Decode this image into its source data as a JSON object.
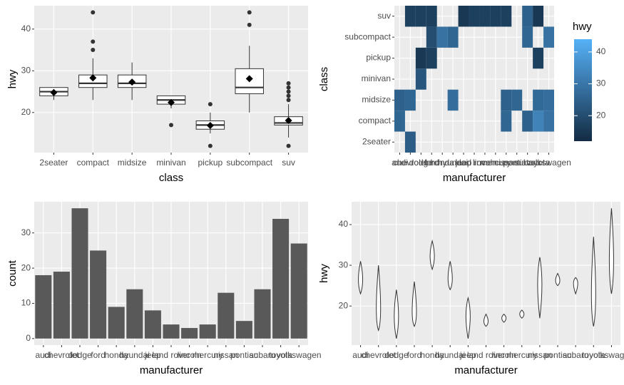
{
  "chart_data": [
    {
      "type": "boxplot",
      "x_label": "class",
      "y_label": "hwy",
      "categories": [
        "2seater",
        "compact",
        "midsize",
        "minivan",
        "pickup",
        "subcompact",
        "suv"
      ],
      "whisker_low": [
        23,
        23,
        23,
        21,
        15,
        20,
        14
      ],
      "q1": [
        24,
        26,
        26,
        22,
        16,
        24.5,
        17
      ],
      "median": [
        25,
        27,
        27,
        23,
        17,
        26,
        17.5
      ],
      "q3": [
        26,
        29,
        29,
        24,
        18,
        30.5,
        19
      ],
      "whisker_high": [
        26,
        33,
        32,
        24,
        20,
        36,
        22
      ],
      "outliers": [
        [],
        [
          35,
          37,
          44
        ],
        [],
        [
          17
        ],
        [
          12,
          22
        ],
        [
          41,
          44
        ],
        [
          12,
          23,
          24,
          25,
          26,
          27
        ]
      ],
      "mean": [
        24.8,
        28.3,
        27.3,
        22.4,
        16.9,
        28.1,
        18.1
      ],
      "ylim": [
        10.4,
        45.6
      ],
      "yticks": [
        20,
        30,
        40
      ],
      "grid": true
    },
    {
      "type": "heatmap",
      "x_label": "manufacturer",
      "y_label": "class",
      "categories": [
        "audi",
        "chevrolet",
        "dodge",
        "ford",
        "honda",
        "hyundai",
        "jeep",
        "land rover",
        "lincoln",
        "mercury",
        "nissan",
        "pontiac",
        "subaru",
        "toyota",
        "volkswagen"
      ],
      "row_categories": [
        "2seater",
        "compact",
        "midsize",
        "minivan",
        "pickup",
        "subcompact",
        "suv"
      ],
      "values": [
        [
          null,
          24,
          null,
          null,
          null,
          null,
          null,
          null,
          null,
          null,
          null,
          null,
          null,
          null,
          null
        ],
        [
          26,
          null,
          null,
          null,
          null,
          null,
          null,
          null,
          null,
          null,
          26,
          null,
          25,
          33,
          29
        ],
        [
          25,
          26,
          null,
          null,
          null,
          28,
          null,
          null,
          null,
          null,
          25,
          26,
          null,
          27,
          28
        ],
        [
          null,
          null,
          22,
          null,
          null,
          null,
          null,
          null,
          null,
          null,
          null,
          null,
          null,
          null,
          null
        ],
        [
          null,
          null,
          15,
          17,
          null,
          null,
          null,
          null,
          null,
          null,
          null,
          null,
          null,
          17,
          null
        ],
        [
          null,
          null,
          null,
          20,
          29,
          26,
          null,
          null,
          null,
          null,
          null,
          null,
          26,
          null,
          29
        ],
        [
          null,
          17,
          17,
          17,
          null,
          null,
          15,
          17,
          17,
          17,
          17,
          null,
          25,
          15,
          null
        ]
      ],
      "legend": {
        "title": "hwy",
        "colors": [
          "#132B43",
          "#56B1F7"
        ],
        "lim": [
          12,
          44
        ],
        "ticks": [
          20,
          30,
          40
        ]
      },
      "grid": true
    },
    {
      "type": "bar",
      "x_label": "manufacturer",
      "y_label": "count",
      "categories": [
        "audi",
        "chevrolet",
        "dodge",
        "ford",
        "honda",
        "hyundai",
        "jeep",
        "land rover",
        "lincoln",
        "mercury",
        "nissan",
        "pontiac",
        "subaru",
        "toyota",
        "volkswagen"
      ],
      "values": [
        18,
        19,
        37,
        25,
        9,
        14,
        8,
        4,
        3,
        4,
        13,
        5,
        14,
        34,
        27
      ],
      "color": "#595959",
      "ylim": [
        -1.85,
        38.85
      ],
      "yticks": [
        0,
        10,
        20,
        30
      ],
      "grid": true
    },
    {
      "type": "violin",
      "x_label": "manufacturer",
      "y_label": "hwy",
      "categories": [
        "audi",
        "chevrolet",
        "dodge",
        "ford",
        "honda",
        "hyundai",
        "jeep",
        "land rover",
        "lincoln",
        "mercury",
        "nissan",
        "pontiac",
        "subaru",
        "toyota",
        "volkswagen"
      ],
      "min": [
        23,
        14,
        12,
        15,
        29,
        24,
        12,
        15,
        16,
        17,
        17,
        25,
        23,
        15,
        23
      ],
      "mode": [
        26,
        17,
        17,
        17,
        32,
        26,
        18,
        16,
        17,
        18,
        26,
        26,
        26,
        20,
        29
      ],
      "max": [
        31,
        30,
        24,
        26,
        36,
        31,
        22,
        18,
        18,
        19,
        32,
        28,
        27,
        37,
        44
      ],
      "ylim": [
        10.4,
        45.6
      ],
      "yticks": [
        20,
        30,
        40
      ],
      "grid": true
    }
  ]
}
